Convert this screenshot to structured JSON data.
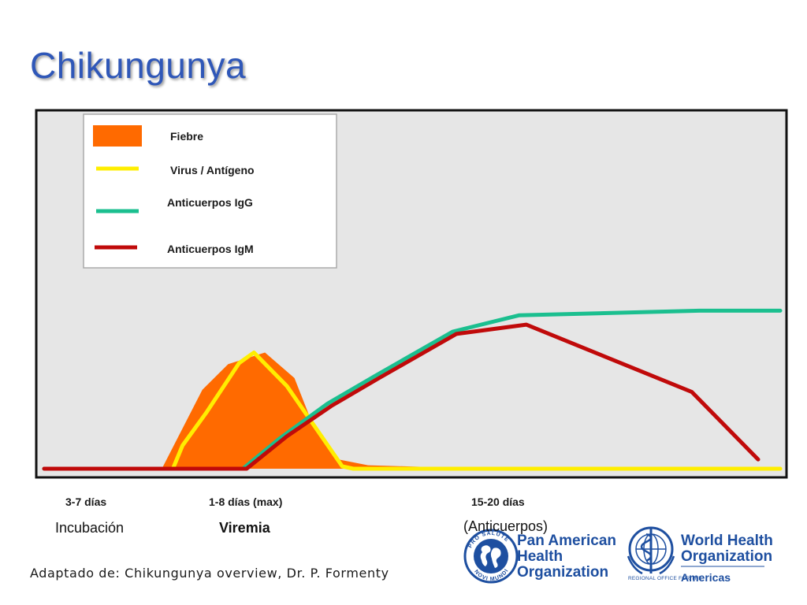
{
  "slide": {
    "title": "Chikungunya",
    "source": "Adaptado de: Chikungunya overview, Dr. P. Formenty"
  },
  "chart_data": {
    "type": "line",
    "title": "",
    "xlabel": "",
    "ylabel": "",
    "x_range": [
      0,
      100
    ],
    "y_range": [
      0,
      100
    ],
    "grid": false,
    "legend_position": "top-left",
    "legend": [
      {
        "name": "Fiebre",
        "style": "area",
        "color": "#ff6a00"
      },
      {
        "name": "Virus / Antígeno",
        "style": "line",
        "color": "#ffee00"
      },
      {
        "name": "Anticuerpos IgG",
        "style": "line",
        "color": "#1bbf8f"
      },
      {
        "name": "Anticuerpos IgM",
        "style": "line",
        "color": "#c00a0a"
      }
    ],
    "series": [
      {
        "name": "Fiebre",
        "type": "area",
        "color": "#ff6a00",
        "x": [
          16.0,
          21.5,
          25.0,
          30.0,
          34.0,
          36.5,
          40.0,
          44.0,
          60.0,
          100.0
        ],
        "y": [
          0,
          34,
          45,
          50,
          39,
          19,
          4,
          1.5,
          0,
          0
        ]
      },
      {
        "name": "Virus / Antígeno",
        "type": "line",
        "color": "#ffee00",
        "x": [
          17.5,
          18.8,
          22.0,
          26.5,
          28.5,
          33.0,
          40.5,
          42.0,
          100.0
        ],
        "y": [
          0,
          10,
          24,
          45.5,
          50,
          35.5,
          1,
          0,
          0
        ]
      },
      {
        "name": "Anticuerpos IgG",
        "type": "line",
        "color": "#1bbf8f",
        "x": [
          0,
          27.0,
          32.0,
          38.5,
          45.0,
          55.5,
          64.5,
          89.0,
          100.0
        ],
        "y": [
          0,
          0,
          13,
          28,
          40,
          59,
          66,
          68,
          68
        ]
      },
      {
        "name": "Anticuerpos IgM",
        "type": "line",
        "color": "#c00a0a",
        "x": [
          0,
          27.5,
          33.0,
          39.0,
          45.5,
          56.0,
          65.5,
          88.0,
          97.0
        ],
        "y": [
          0,
          0,
          14,
          27,
          39,
          58,
          62,
          33,
          4
        ]
      }
    ],
    "x_ticks": [
      {
        "x": 6.5,
        "label": "3-7 días"
      },
      {
        "x": 28.0,
        "label": "1-8 días (max)"
      },
      {
        "x": 62.0,
        "label": "15-20 días"
      }
    ],
    "phases": [
      {
        "x": 7.5,
        "label": "Incubación"
      },
      {
        "x": 28.5,
        "label": "Viremia"
      },
      {
        "x": 64.5,
        "label": "(Anticuerpos)"
      }
    ]
  },
  "logos": {
    "paho": {
      "seal_text": "PRO SALUTE NOVI MUNDI",
      "name_lines": [
        "Pan American",
        "Health",
        "Organization"
      ],
      "color": "#1e4fa0"
    },
    "who": {
      "name_lines": [
        "World Health",
        "Organization"
      ],
      "sub_text": "REGIONAL OFFICE FOR THE",
      "region": "Americas",
      "color": "#1e4fa0"
    }
  }
}
